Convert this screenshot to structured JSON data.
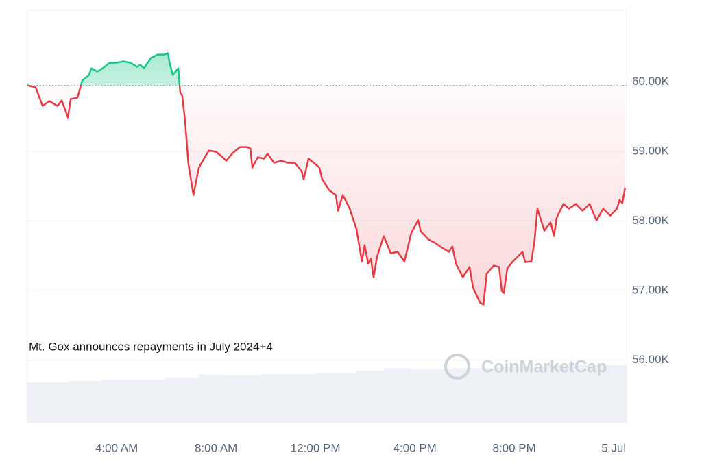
{
  "chart_data": {
    "type": "line",
    "annotation": "Mt. Gox announces repayments in July 2024+4",
    "watermark": "CoinMarketCap",
    "baseline": 59950,
    "color_up": "#16c784",
    "color_down": "#ea3943",
    "x": [
      0.41,
      0.74,
      1.02,
      1.29,
      1.62,
      1.79,
      2.04,
      2.15,
      2.42,
      2.62,
      2.89,
      2.98,
      3.22,
      3.44,
      3.72,
      4.0,
      4.27,
      4.55,
      4.82,
      4.96,
      5.1,
      5.38,
      5.65,
      5.93,
      6.06,
      6.15,
      6.26,
      6.48,
      6.56,
      6.64,
      6.75,
      6.89,
      7.09,
      7.31,
      7.58,
      7.72,
      8.0,
      8.27,
      8.41,
      8.69,
      8.96,
      9.24,
      9.38,
      9.46,
      9.68,
      9.93,
      10.07,
      10.34,
      10.62,
      10.89,
      11.17,
      11.44,
      11.53,
      11.72,
      12.0,
      12.16,
      12.27,
      12.55,
      12.82,
      12.91,
      13.1,
      13.38,
      13.65,
      13.87,
      13.98,
      14.12,
      14.23,
      14.34,
      14.48,
      14.75,
      15.03,
      15.31,
      15.58,
      15.86,
      16.13,
      16.24,
      16.55,
      16.82,
      17.1,
      17.37,
      17.51,
      17.65,
      17.93,
      18.2,
      18.34,
      18.62,
      18.76,
      18.89,
      19.17,
      19.39,
      19.5,
      19.58,
      19.72,
      19.94,
      20.33,
      20.44,
      20.69,
      20.82,
      20.93,
      21.21,
      21.46,
      21.6,
      21.71,
      21.98,
      22.2,
      22.48,
      22.75,
      23.03,
      23.31,
      23.58,
      23.86,
      24.13,
      24.24,
      24.35,
      24.46
    ],
    "values": [
      59951,
      59921,
      59655,
      59724,
      59655,
      59734,
      59488,
      59754,
      59773,
      60020,
      60099,
      60197,
      60148,
      60197,
      60276,
      60276,
      60296,
      60276,
      60217,
      60246,
      60197,
      60345,
      60394,
      60394,
      60414,
      60246,
      60099,
      60197,
      59852,
      59803,
      59458,
      58818,
      58374,
      58768,
      58936,
      59015,
      58995,
      58916,
      58867,
      58985,
      59064,
      59064,
      59044,
      58768,
      58916,
      58897,
      58966,
      58837,
      58867,
      58837,
      58837,
      58719,
      58601,
      58897,
      58818,
      58768,
      58601,
      58443,
      58374,
      58148,
      58374,
      58177,
      57882,
      57419,
      57655,
      57389,
      57458,
      57192,
      57488,
      57783,
      57537,
      57557,
      57419,
      57833,
      58010,
      57852,
      57734,
      57685,
      57616,
      57557,
      57635,
      57389,
      57192,
      57340,
      57044,
      56828,
      56798,
      57241,
      57360,
      57340,
      56995,
      56966,
      57320,
      57419,
      57557,
      57409,
      57419,
      57734,
      58177,
      57862,
      57980,
      57783,
      58049,
      58246,
      58177,
      58246,
      58148,
      58246,
      58010,
      58177,
      58079,
      58177,
      58305,
      58256,
      58473
    ],
    "xlim": [
      0.41,
      24.52
    ],
    "ylim": [
      55100,
      61030
    ],
    "xticks": [
      {
        "value": 4,
        "label": "4:00 AM"
      },
      {
        "value": 8,
        "label": "8:00 AM"
      },
      {
        "value": 12,
        "label": "12:00 PM"
      },
      {
        "value": 16,
        "label": "4:00 PM"
      },
      {
        "value": 20,
        "label": "8:00 PM"
      },
      {
        "value": 24,
        "label": "5 Jul"
      }
    ],
    "yticks": [
      {
        "value": 56000,
        "label": "56.00K"
      },
      {
        "value": 57000,
        "label": "57.00K"
      },
      {
        "value": 58000,
        "label": "58.00K"
      },
      {
        "value": 59000,
        "label": "59.00K"
      },
      {
        "value": 60000,
        "label": "60.00K"
      }
    ],
    "grid": true
  }
}
